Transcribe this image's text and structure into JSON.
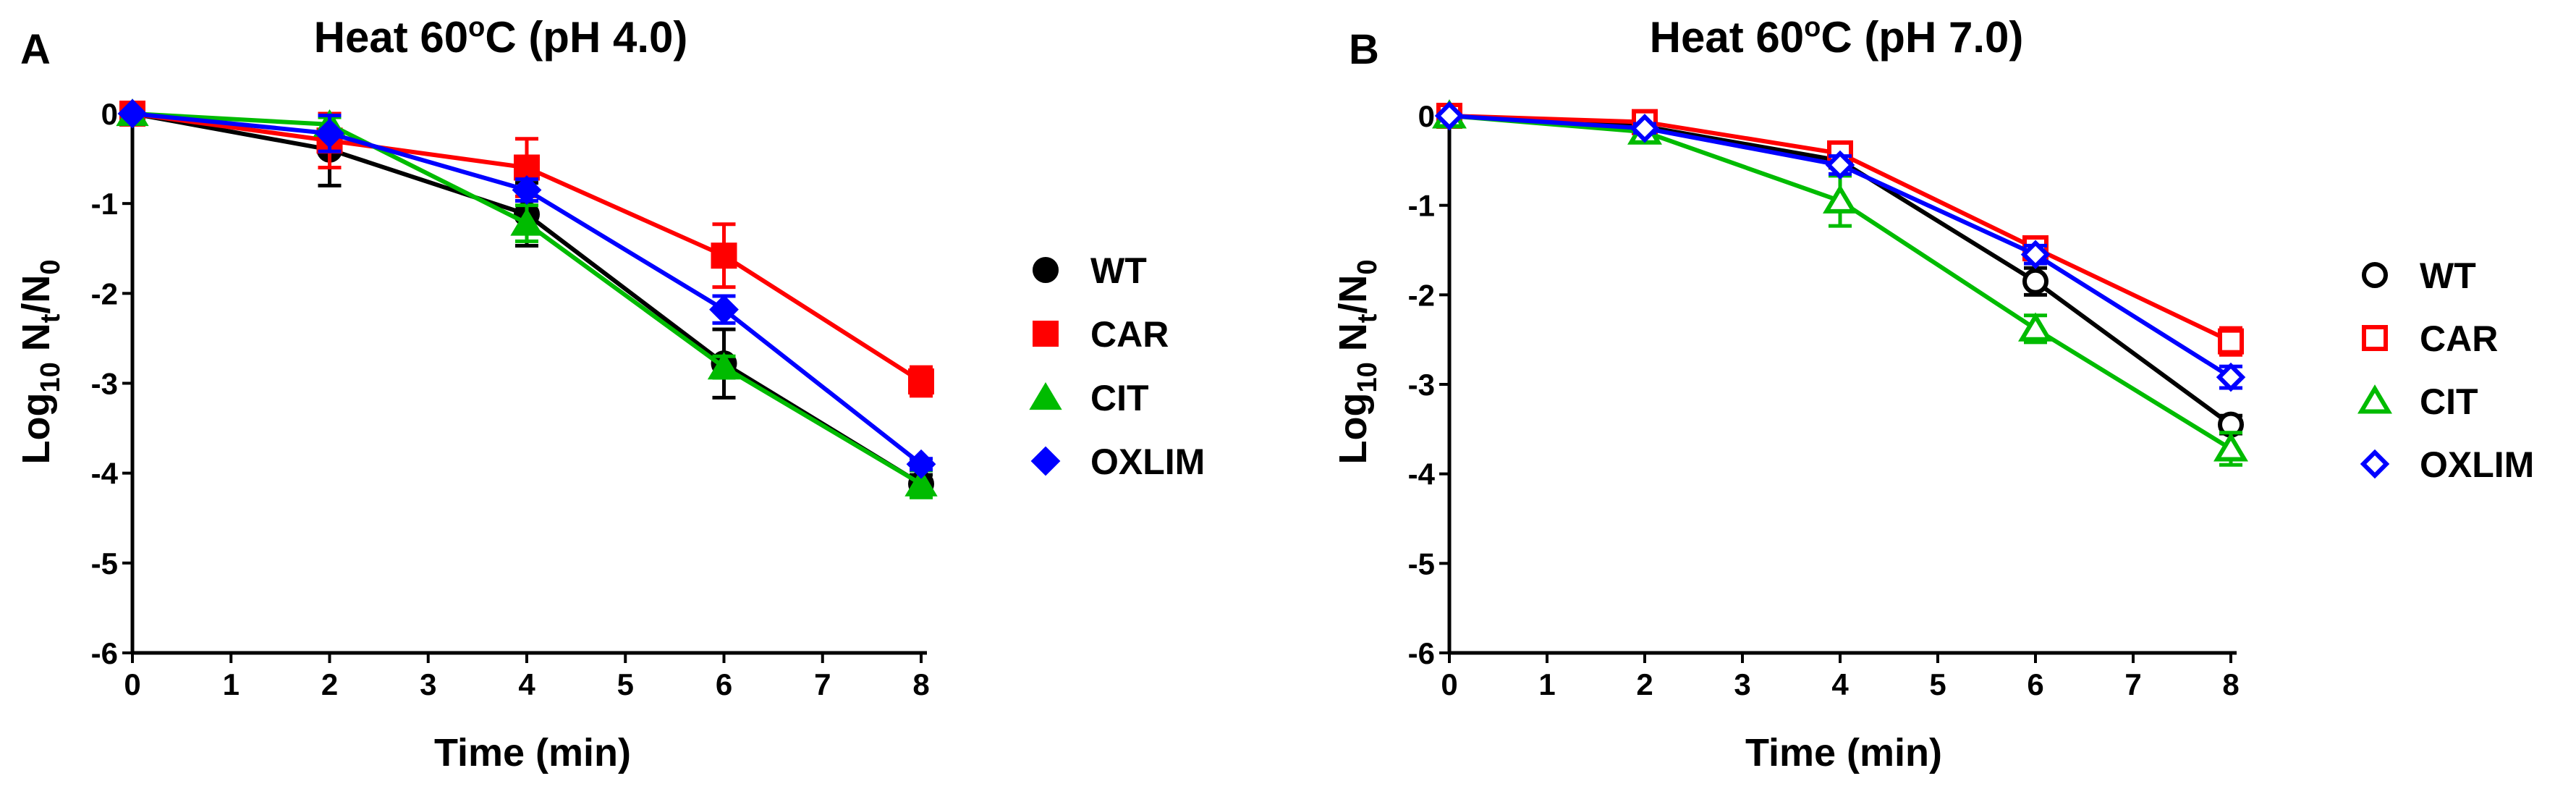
{
  "chart_data": [
    {
      "panel": "A",
      "type": "line",
      "title_prefix": "Heat 60",
      "title_degree": "o",
      "title_suffix": "C (pH 4.0)",
      "xlabel": "Time (min)",
      "ylabel_prefix": "Log",
      "ylabel_sub1": "10",
      "ylabel_mid": " N",
      "ylabel_sub2": "t",
      "ylabel_slash": "/N",
      "ylabel_sub3": "0",
      "xlim": [
        0,
        8
      ],
      "ylim": [
        -6,
        0
      ],
      "xticks": [
        "0",
        "1",
        "2",
        "3",
        "4",
        "5",
        "6",
        "7",
        "8"
      ],
      "yticks": [
        "0",
        "-1",
        "-2",
        "-3",
        "-4",
        "-5",
        "-6"
      ],
      "legend_position": "right",
      "series": [
        {
          "name": "WT",
          "color": "#000000",
          "marker": "circle",
          "filled": true,
          "x": [
            0,
            2,
            4,
            6,
            8
          ],
          "y": [
            0,
            -0.4,
            -1.12,
            -2.78,
            -4.12
          ],
          "err": [
            0,
            0.4,
            0.35,
            0.38,
            0.1
          ]
        },
        {
          "name": "CAR",
          "color": "#ff0000",
          "marker": "square",
          "filled": true,
          "x": [
            0,
            2,
            4,
            6,
            8
          ],
          "y": [
            0,
            -0.3,
            -0.6,
            -1.58,
            -2.98
          ],
          "err": [
            0,
            0.3,
            0.32,
            0.35,
            0.16
          ]
        },
        {
          "name": "CIT",
          "color": "#00bb00",
          "marker": "triangle",
          "filled": true,
          "x": [
            0,
            2,
            4,
            6,
            8
          ],
          "y": [
            0,
            -0.12,
            -1.22,
            -2.82,
            -4.12
          ],
          "err": [
            0,
            0.08,
            0.2,
            0.12,
            0.15
          ]
        },
        {
          "name": "OXLIM",
          "color": "#0000ff",
          "marker": "diamond",
          "filled": true,
          "x": [
            0,
            2,
            4,
            6,
            8
          ],
          "y": [
            0,
            -0.22,
            -0.85,
            -2.18,
            -3.9
          ],
          "err": [
            0,
            0.2,
            0.12,
            0.15,
            0.06
          ]
        }
      ]
    },
    {
      "panel": "B",
      "type": "line",
      "title_prefix": "Heat 60",
      "title_degree": "o",
      "title_suffix": "C (pH 7.0)",
      "xlabel": "Time (min)",
      "ylabel_prefix": "Log",
      "ylabel_sub1": "10",
      "ylabel_mid": " N",
      "ylabel_sub2": "t",
      "ylabel_slash": "/N",
      "ylabel_sub3": "0",
      "xlim": [
        0,
        8
      ],
      "ylim": [
        -6,
        0
      ],
      "xticks": [
        "0",
        "1",
        "2",
        "3",
        "4",
        "5",
        "6",
        "7",
        "8"
      ],
      "yticks": [
        "0",
        "-1",
        "-2",
        "-3",
        "-4",
        "-5",
        "-6"
      ],
      "legend_position": "right",
      "series": [
        {
          "name": "WT",
          "color": "#000000",
          "marker": "circle",
          "filled": false,
          "x": [
            0,
            2,
            4,
            6,
            8
          ],
          "y": [
            0,
            -0.12,
            -0.5,
            -1.85,
            -3.45
          ],
          "err": [
            0,
            0.05,
            0.08,
            0.15,
            0.1
          ]
        },
        {
          "name": "CAR",
          "color": "#ff0000",
          "marker": "square",
          "filled": false,
          "x": [
            0,
            2,
            4,
            6,
            8
          ],
          "y": [
            0,
            -0.07,
            -0.42,
            -1.48,
            -2.52
          ],
          "err": [
            0,
            0.05,
            0.08,
            0.1,
            0.15
          ]
        },
        {
          "name": "CIT",
          "color": "#00bb00",
          "marker": "triangle",
          "filled": false,
          "x": [
            0,
            2,
            4,
            6,
            8
          ],
          "y": [
            0,
            -0.18,
            -0.95,
            -2.38,
            -3.72
          ],
          "err": [
            0,
            0.06,
            0.28,
            0.15,
            0.18
          ]
        },
        {
          "name": "OXLIM",
          "color": "#0000ff",
          "marker": "diamond",
          "filled": false,
          "x": [
            0,
            2,
            4,
            6,
            8
          ],
          "y": [
            0,
            -0.14,
            -0.55,
            -1.55,
            -2.92
          ],
          "err": [
            0,
            0.05,
            0.1,
            0.1,
            0.12
          ]
        }
      ]
    }
  ]
}
